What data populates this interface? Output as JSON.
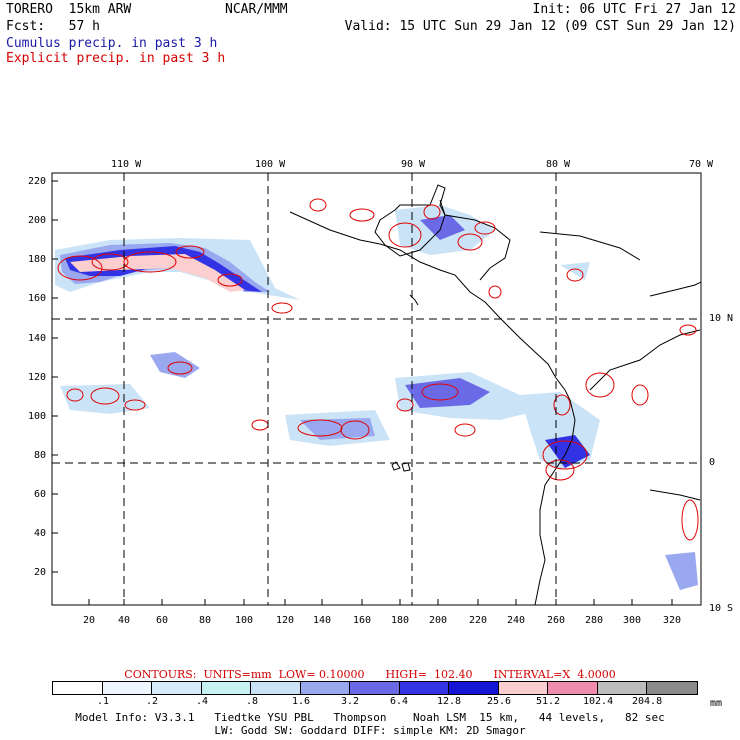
{
  "header": {
    "model": "TORERO  15km ARW",
    "org": "NCAR/MMM",
    "init": "Init: 06 UTC Fri 27 Jan 12",
    "fcst": "Fcst:   57 h",
    "valid": "Valid: 15 UTC Sun 29 Jan 12 (09 CST Sun 29 Jan 12)",
    "cumulus": "Cumulus precip. in past 3 h",
    "explicit": "Explicit precip. in past 3 h"
  },
  "colors": {
    "cumulus_text": "#1a1aa6",
    "explicit_text": "#d40000",
    "contour_line": "#e00000",
    "coast_line": "#000000"
  },
  "map": {
    "top_lon_labels": [
      "110 W",
      "100 W",
      "90 W",
      "80 W",
      "70 W"
    ],
    "right_lat_labels": [
      "10 N",
      "0",
      "10 S"
    ],
    "y_ticks": [
      "220",
      "200",
      "180",
      "160",
      "140",
      "120",
      "100",
      "80",
      "60",
      "40",
      "20"
    ],
    "x_ticks": [
      "20",
      "40",
      "60",
      "80",
      "100",
      "120",
      "140",
      "160",
      "180",
      "200",
      "220",
      "240",
      "260",
      "280",
      "300",
      "320"
    ]
  },
  "contours_text": "CONTOURS:  UNITS=mm  LOW= 0.10000      HIGH=  102.40      INTERVAL=X  4.0000",
  "legend": {
    "colors": [
      "#ffffff",
      "#eef6ff",
      "#d7ecfb",
      "#c6f2f2",
      "#cbe3f7",
      "#9aa8f0",
      "#6a6ae6",
      "#3333e6",
      "#1515d5",
      "#fbcfcf",
      "#f08cb0",
      "#bdbdbd",
      "#8a8a8a",
      "#3c3c3c",
      "#d6a4f2"
    ],
    "labels": [
      ".1",
      ".2",
      ".4",
      ".8",
      "1.6",
      "3.2",
      "6.4",
      "12.8",
      "25.6",
      "51.2",
      "102.4",
      "204.8"
    ],
    "unit": "mm"
  },
  "footer": {
    "line1": "Model Info: V3.3.1   Tiedtke YSU PBL   Thompson    Noah LSM  15 km,   44 levels,   82 sec",
    "line2": "LW: Godd SW: Goddard DIFF: simple KM: 2D Smagor"
  }
}
